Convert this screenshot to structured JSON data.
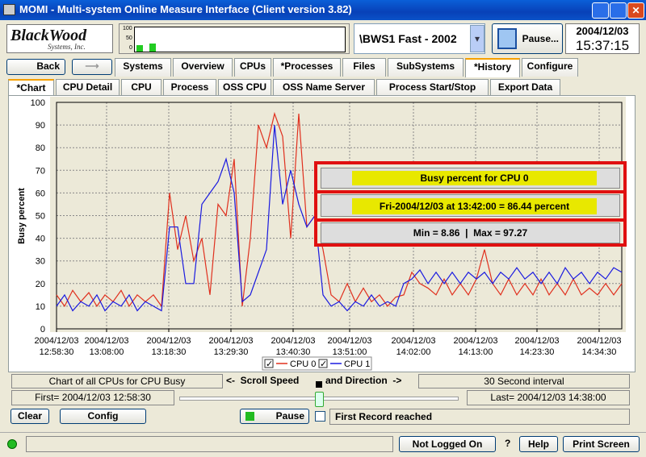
{
  "window": {
    "title": "MOMI - Multi-system Online Measure Interface (Client version 3.82)"
  },
  "toolbar": {
    "logo": "BlackWood",
    "logo_sub": "Systems, Inc.",
    "monitor_scale": [
      "100",
      "50",
      "0"
    ],
    "system": "\\BWS1 Fast - 2002",
    "pause": "Pause...",
    "date": "2004/12/03",
    "time": "15:37:15"
  },
  "nav": {
    "back": "Back",
    "tabs": [
      "Systems",
      "Overview",
      "CPUs",
      "*Processes",
      "Files",
      "SubSystems",
      "*History",
      "Configure"
    ]
  },
  "subtabs": [
    "*Chart",
    "CPU Detail",
    "CPU",
    "Process",
    "OSS CPU",
    "OSS Name Server",
    "Process Start/Stop",
    "Export Data"
  ],
  "tooltip": {
    "title": "Busy percent for CPU 0",
    "point": "Fri-2004/12/03 at 13:42:00 = 86.44 percent",
    "range": "Min = 8.86  |  Max = 97.27"
  },
  "chart_data": {
    "type": "line",
    "ylabel": "Busy percent",
    "x": [
      0,
      1,
      2,
      3,
      4,
      5,
      6,
      7,
      8,
      9,
      10,
      11,
      12,
      13,
      14,
      15,
      16,
      17,
      18,
      19,
      20,
      21,
      22,
      23,
      24,
      25,
      26,
      27,
      28,
      29,
      30,
      31,
      32,
      33,
      34,
      35,
      36,
      37,
      38,
      39,
      40,
      41,
      42,
      43,
      44,
      45,
      46,
      47,
      48,
      49,
      50,
      51,
      52,
      53,
      54,
      55,
      56,
      57,
      58,
      59,
      60,
      61,
      62,
      63,
      64,
      65,
      66,
      67,
      68,
      69,
      70
    ],
    "xlim": [
      0,
      70
    ],
    "xticks": [
      {
        "value": 0,
        "label": "2004/12/03\n12:58:30"
      },
      {
        "value": 6.2,
        "label": "2004/12/03\n13:08:00"
      },
      {
        "value": 13.9,
        "label": "2004/12/03\n13:18:30"
      },
      {
        "value": 21.6,
        "label": "2004/12/03\n13:29:30"
      },
      {
        "value": 29.3,
        "label": "2004/12/03\n13:40:30"
      },
      {
        "value": 36.3,
        "label": "2004/12/03\n13:51:00"
      },
      {
        "value": 44.2,
        "label": "2004/12/03\n14:02:00"
      },
      {
        "value": 51.9,
        "label": "2004/12/03\n14:13:00"
      },
      {
        "value": 59.5,
        "label": "2004/12/03\n14:23:30"
      },
      {
        "value": 67.2,
        "label": "2004/12/03\n14:34:30"
      }
    ],
    "ylim": [
      0,
      100
    ],
    "yticks": [
      0,
      10,
      20,
      30,
      40,
      50,
      60,
      70,
      80,
      90,
      100
    ],
    "grid": true,
    "series": [
      {
        "name": "CPU 0",
        "color": "#e0301e",
        "values": [
          15,
          10,
          17,
          12,
          16,
          10,
          15,
          12,
          17,
          10,
          15,
          12,
          15,
          10,
          60,
          35,
          50,
          30,
          40,
          15,
          55,
          50,
          75,
          10,
          40,
          90,
          80,
          95,
          85,
          40,
          95,
          45,
          50,
          35,
          15,
          12,
          20,
          12,
          18,
          12,
          15,
          10,
          14,
          15,
          25,
          20,
          18,
          15,
          22,
          15,
          20,
          15,
          22,
          35,
          20,
          15,
          22,
          15,
          20,
          15,
          22,
          15,
          20,
          15,
          22,
          15,
          18,
          15,
          20,
          15,
          20
        ]
      },
      {
        "name": "CPU 1",
        "color": "#1a1ae0",
        "values": [
          10,
          15,
          8,
          12,
          10,
          15,
          8,
          12,
          10,
          15,
          8,
          12,
          10,
          8,
          45,
          45,
          20,
          20,
          55,
          60,
          65,
          75,
          60,
          12,
          15,
          25,
          35,
          90,
          55,
          70,
          55,
          45,
          50,
          15,
          10,
          12,
          8,
          12,
          10,
          15,
          10,
          12,
          10,
          20,
          22,
          26,
          20,
          25,
          20,
          25,
          20,
          25,
          22,
          25,
          20,
          25,
          22,
          27,
          22,
          25,
          20,
          25,
          20,
          27,
          22,
          25,
          20,
          25,
          22,
          27,
          25
        ]
      }
    ]
  },
  "status": {
    "caption": "Chart of all CPUs for CPU Busy",
    "scroll_left": "<-  Scroll Speed",
    "scroll_right": "and Direction  ->",
    "interval": "30 Second interval",
    "first": "First= 2004/12/03 12:58:30",
    "last": "Last= 2004/12/03 14:38:00",
    "clear": "Clear",
    "config": "Config",
    "pause": "Pause",
    "message": "First Record reached",
    "login": "Not Logged On",
    "help_mark": "?",
    "help": "Help",
    "print": "Print Screen"
  }
}
